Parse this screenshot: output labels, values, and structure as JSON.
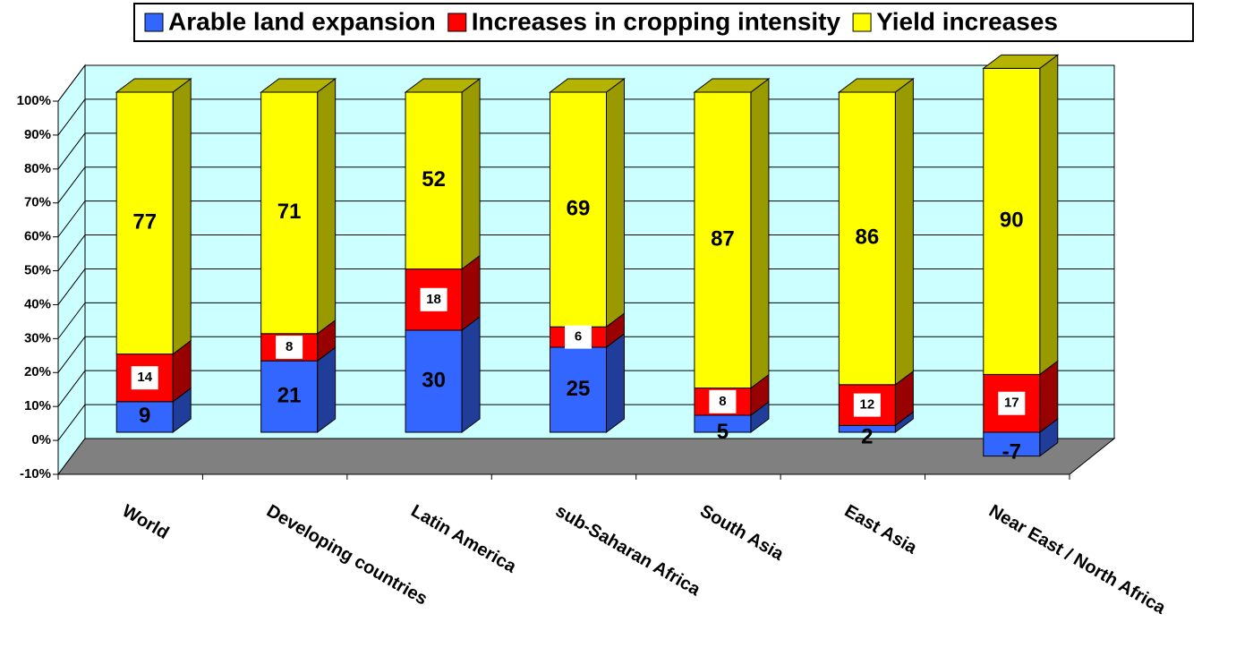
{
  "chart_data": {
    "type": "bar3d-stacked",
    "categories": [
      "World",
      "Developing countries",
      "Latin America",
      "sub-Saharan Africa",
      "South Asia",
      "East Asia",
      "Near East / North Africa"
    ],
    "series": [
      {
        "name": "Arable land expansion",
        "color": "#3366ff",
        "values": [
          9,
          21,
          30,
          25,
          5,
          2,
          -7
        ]
      },
      {
        "name": "Increases in cropping intensity",
        "color": "#ff0000",
        "values": [
          14,
          8,
          18,
          6,
          8,
          12,
          17
        ]
      },
      {
        "name": "Yield increases",
        "color": "#ffff00",
        "values": [
          77,
          71,
          52,
          69,
          87,
          86,
          90
        ]
      }
    ],
    "ylim": [
      -10,
      100
    ],
    "yticks": [
      {
        "value": -10,
        "label": "-10%"
      },
      {
        "value": 0,
        "label": "0%"
      },
      {
        "value": 10,
        "label": "10%"
      },
      {
        "value": 20,
        "label": "20%"
      },
      {
        "value": 30,
        "label": "30%"
      },
      {
        "value": 40,
        "label": "40%"
      },
      {
        "value": 50,
        "label": "50%"
      },
      {
        "value": 60,
        "label": "60%"
      },
      {
        "value": 70,
        "label": "70%"
      },
      {
        "value": 80,
        "label": "80%"
      },
      {
        "value": 90,
        "label": "90%"
      },
      {
        "value": 100,
        "label": "100%"
      }
    ],
    "grid": true,
    "legend": "top"
  }
}
